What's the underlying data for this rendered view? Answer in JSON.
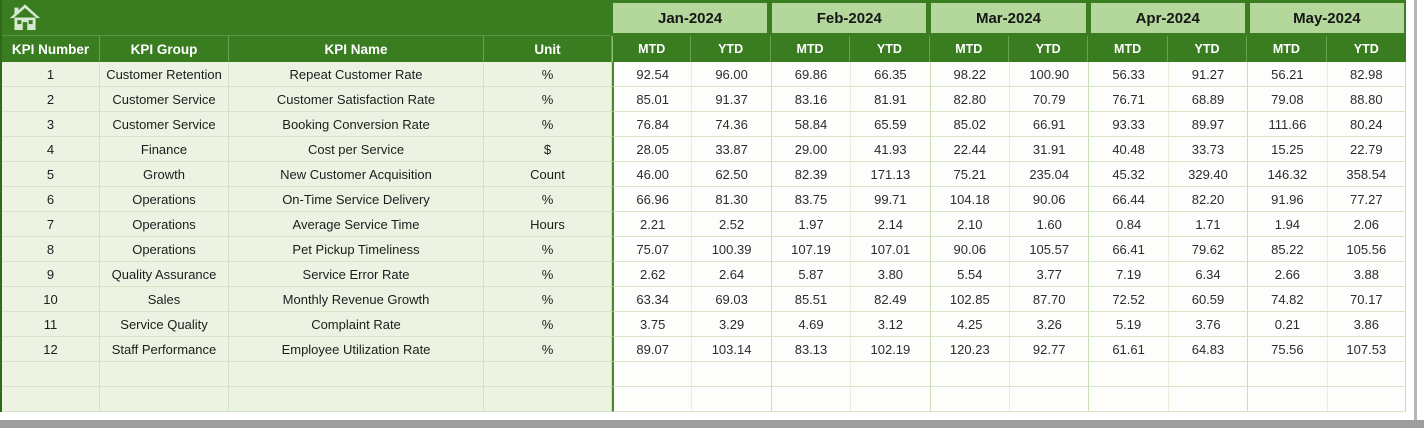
{
  "header": {
    "home_icon": "home-icon",
    "months": [
      "Jan-2024",
      "Feb-2024",
      "Mar-2024",
      "Apr-2024",
      "May-2024"
    ],
    "sub_columns": [
      "MTD",
      "YTD"
    ],
    "left_columns": [
      "KPI Number",
      "KPI Group",
      "KPI Name",
      "Unit"
    ]
  },
  "table": {
    "rows": [
      {
        "number": "1",
        "group": "Customer Retention",
        "name": "Repeat Customer Rate",
        "unit": "%",
        "values": [
          "92.54",
          "96.00",
          "69.86",
          "66.35",
          "98.22",
          "100.90",
          "56.33",
          "91.27",
          "56.21",
          "82.98"
        ]
      },
      {
        "number": "2",
        "group": "Customer Service",
        "name": "Customer Satisfaction Rate",
        "unit": "%",
        "values": [
          "85.01",
          "91.37",
          "83.16",
          "81.91",
          "82.80",
          "70.79",
          "76.71",
          "68.89",
          "79.08",
          "88.80"
        ]
      },
      {
        "number": "3",
        "group": "Customer Service",
        "name": "Booking Conversion Rate",
        "unit": "%",
        "values": [
          "76.84",
          "74.36",
          "58.84",
          "65.59",
          "85.02",
          "66.91",
          "93.33",
          "89.97",
          "111.66",
          "80.24"
        ]
      },
      {
        "number": "4",
        "group": "Finance",
        "name": "Cost per Service",
        "unit": "$",
        "values": [
          "28.05",
          "33.87",
          "29.00",
          "41.93",
          "22.44",
          "31.91",
          "40.48",
          "33.73",
          "15.25",
          "22.79"
        ]
      },
      {
        "number": "5",
        "group": "Growth",
        "name": "New Customer Acquisition",
        "unit": "Count",
        "values": [
          "46.00",
          "62.50",
          "82.39",
          "171.13",
          "75.21",
          "235.04",
          "45.32",
          "329.40",
          "146.32",
          "358.54"
        ]
      },
      {
        "number": "6",
        "group": "Operations",
        "name": "On-Time Service Delivery",
        "unit": "%",
        "values": [
          "66.96",
          "81.30",
          "83.75",
          "99.71",
          "104.18",
          "90.06",
          "66.44",
          "82.20",
          "91.96",
          "77.27"
        ]
      },
      {
        "number": "7",
        "group": "Operations",
        "name": "Average Service Time",
        "unit": "Hours",
        "values": [
          "2.21",
          "2.52",
          "1.97",
          "2.14",
          "2.10",
          "1.60",
          "0.84",
          "1.71",
          "1.94",
          "2.06"
        ]
      },
      {
        "number": "8",
        "group": "Operations",
        "name": "Pet Pickup Timeliness",
        "unit": "%",
        "values": [
          "75.07",
          "100.39",
          "107.19",
          "107.01",
          "90.06",
          "105.57",
          "66.41",
          "79.62",
          "85.22",
          "105.56"
        ]
      },
      {
        "number": "9",
        "group": "Quality Assurance",
        "name": "Service Error Rate",
        "unit": "%",
        "values": [
          "2.62",
          "2.64",
          "5.87",
          "3.80",
          "5.54",
          "3.77",
          "7.19",
          "6.34",
          "2.66",
          "3.88"
        ]
      },
      {
        "number": "10",
        "group": "Sales",
        "name": "Monthly Revenue Growth",
        "unit": "%",
        "values": [
          "63.34",
          "69.03",
          "85.51",
          "82.49",
          "102.85",
          "87.70",
          "72.52",
          "60.59",
          "74.82",
          "70.17"
        ]
      },
      {
        "number": "11",
        "group": "Service Quality",
        "name": "Complaint Rate",
        "unit": "%",
        "values": [
          "3.75",
          "3.29",
          "4.69",
          "3.12",
          "4.25",
          "3.26",
          "5.19",
          "3.76",
          "0.21",
          "3.86"
        ]
      },
      {
        "number": "12",
        "group": "Staff Performance",
        "name": "Employee Utilization Rate",
        "unit": "%",
        "values": [
          "89.07",
          "103.14",
          "83.13",
          "102.19",
          "120.23",
          "92.77",
          "61.61",
          "64.83",
          "75.56",
          "107.53"
        ]
      }
    ],
    "empty_rows": 2
  },
  "colors": {
    "header_green": "#3a7d21",
    "month_cell_green": "#b4d79c",
    "row_tint_green": "#ecf3e2",
    "grid_line_green": "#d7e4c5",
    "value_cell_bg": "#fdfefb",
    "chrome_gray": "#9d9d9d"
  }
}
